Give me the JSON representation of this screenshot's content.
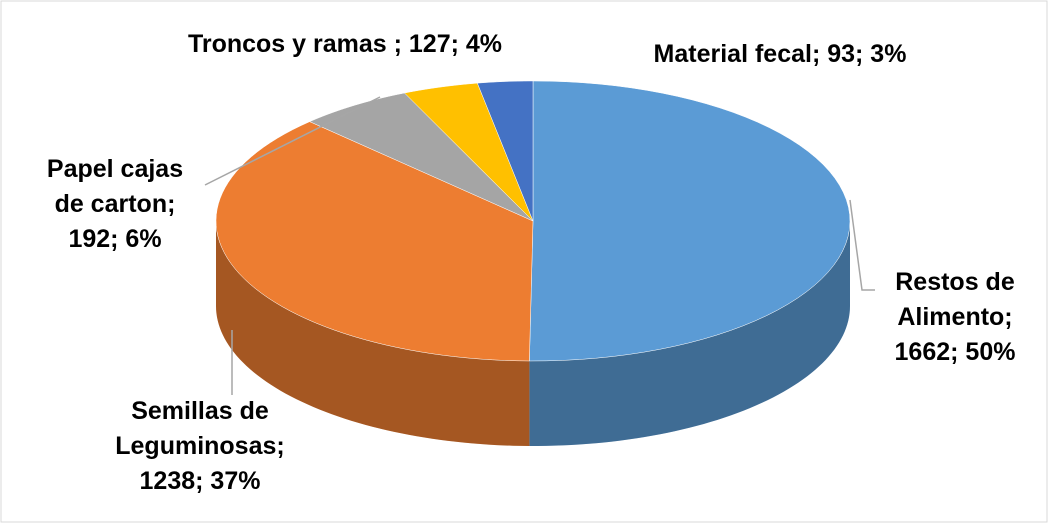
{
  "chart_data": {
    "type": "pie3d",
    "values": [
      1662,
      1238,
      192,
      127,
      93
    ],
    "value_labels": [
      [
        "Restos de",
        "Alimento;",
        "1662; 50%"
      ],
      [
        "Semillas de",
        "Leguminosas;",
        "1238; 37%"
      ],
      [
        "Papel cajas",
        "de carton;",
        "192; 6%"
      ],
      [
        "Troncos y ramas ; 127; 4%"
      ],
      [
        "Material fecal; 93; 3%"
      ]
    ],
    "colors": [
      "#5b9bd5",
      "#ed7d31",
      "#a5a5a5",
      "#ffc000",
      "#4472c4"
    ]
  }
}
